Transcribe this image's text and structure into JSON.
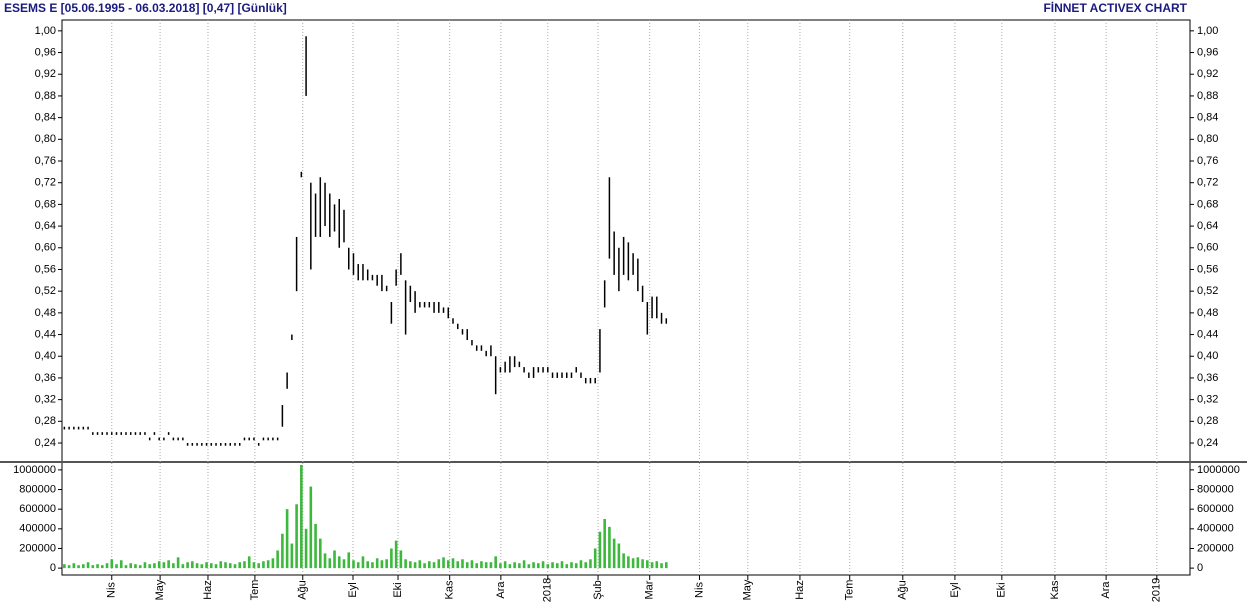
{
  "header": {
    "brand": "FİNNET ACTIVEX CHART"
  },
  "chart_data": [
    {
      "type": "hilo",
      "title": "ESEMS E  [05.06.1995 - 06.03.2018]  [0,47]  [Günlük]",
      "color": "#000000",
      "high": [
        0.27,
        0.27,
        0.27,
        0.27,
        0.27,
        0.27,
        0.26,
        0.26,
        0.26,
        0.26,
        0.26,
        0.26,
        0.26,
        0.26,
        0.26,
        0.26,
        0.26,
        0.26,
        0.25,
        0.26,
        0.25,
        0.25,
        0.26,
        0.25,
        0.25,
        0.25,
        0.24,
        0.24,
        0.24,
        0.24,
        0.24,
        0.24,
        0.24,
        0.24,
        0.24,
        0.24,
        0.24,
        0.24,
        0.25,
        0.25,
        0.25,
        0.24,
        0.25,
        0.25,
        0.25,
        0.25,
        0.31,
        0.37,
        0.44,
        0.62,
        0.74,
        0.99,
        0.72,
        0.7,
        0.73,
        0.72,
        0.7,
        0.68,
        0.69,
        0.67,
        0.6,
        0.59,
        0.57,
        0.57,
        0.56,
        0.55,
        0.55,
        0.55,
        0.53,
        0.5,
        0.56,
        0.59,
        0.54,
        0.53,
        0.52,
        0.5,
        0.5,
        0.5,
        0.5,
        0.5,
        0.49,
        0.49,
        0.47,
        0.46,
        0.45,
        0.45,
        0.43,
        0.42,
        0.42,
        0.41,
        0.42,
        0.4,
        0.38,
        0.39,
        0.4,
        0.4,
        0.39,
        0.38,
        0.37,
        0.38,
        0.38,
        0.38,
        0.38,
        0.37,
        0.37,
        0.37,
        0.37,
        0.37,
        0.38,
        0.37,
        0.36,
        0.36,
        0.36,
        0.45,
        0.54,
        0.73,
        0.63,
        0.6,
        0.62,
        0.61,
        0.59,
        0.58,
        0.53,
        0.5,
        0.51,
        0.51,
        0.48,
        0.47
      ],
      "low": [
        0.265,
        0.265,
        0.265,
        0.265,
        0.265,
        0.265,
        0.255,
        0.255,
        0.255,
        0.255,
        0.255,
        0.255,
        0.255,
        0.255,
        0.255,
        0.255,
        0.255,
        0.255,
        0.245,
        0.255,
        0.245,
        0.245,
        0.255,
        0.245,
        0.245,
        0.245,
        0.235,
        0.235,
        0.235,
        0.235,
        0.235,
        0.235,
        0.235,
        0.235,
        0.235,
        0.235,
        0.235,
        0.235,
        0.245,
        0.245,
        0.245,
        0.235,
        0.245,
        0.245,
        0.245,
        0.245,
        0.27,
        0.34,
        0.43,
        0.52,
        0.73,
        0.88,
        0.56,
        0.62,
        0.62,
        0.64,
        0.62,
        0.63,
        0.6,
        0.61,
        0.56,
        0.55,
        0.54,
        0.54,
        0.54,
        0.54,
        0.53,
        0.52,
        0.52,
        0.46,
        0.53,
        0.55,
        0.44,
        0.5,
        0.48,
        0.49,
        0.49,
        0.49,
        0.48,
        0.48,
        0.48,
        0.47,
        0.46,
        0.45,
        0.44,
        0.43,
        0.42,
        0.41,
        0.41,
        0.4,
        0.4,
        0.33,
        0.37,
        0.37,
        0.37,
        0.38,
        0.38,
        0.37,
        0.36,
        0.36,
        0.37,
        0.37,
        0.37,
        0.36,
        0.36,
        0.36,
        0.36,
        0.36,
        0.37,
        0.36,
        0.35,
        0.35,
        0.35,
        0.37,
        0.49,
        0.58,
        0.55,
        0.52,
        0.55,
        0.54,
        0.55,
        0.52,
        0.5,
        0.44,
        0.47,
        0.47,
        0.46,
        0.46
      ],
      "ylim": [
        0.205,
        1.02
      ],
      "yticks": [
        {
          "value": 0.24,
          "label": "0,24"
        },
        {
          "value": 0.28,
          "label": "0,28"
        },
        {
          "value": 0.32,
          "label": "0,32"
        },
        {
          "value": 0.36,
          "label": "0,36"
        },
        {
          "value": 0.4,
          "label": "0,40"
        },
        {
          "value": 0.44,
          "label": "0,44"
        },
        {
          "value": 0.48,
          "label": "0,48"
        },
        {
          "value": 0.52,
          "label": "0,52"
        },
        {
          "value": 0.56,
          "label": "0,56"
        },
        {
          "value": 0.6,
          "label": "0,60"
        },
        {
          "value": 0.64,
          "label": "0,64"
        },
        {
          "value": 0.68,
          "label": "0,68"
        },
        {
          "value": 0.72,
          "label": "0,72"
        },
        {
          "value": 0.76,
          "label": "0,76"
        },
        {
          "value": 0.8,
          "label": "0,80"
        },
        {
          "value": 0.84,
          "label": "0,84"
        },
        {
          "value": 0.88,
          "label": "0,88"
        },
        {
          "value": 0.92,
          "label": "0,92"
        },
        {
          "value": 0.96,
          "label": "0,96"
        },
        {
          "value": 1.0,
          "label": "1,00"
        }
      ],
      "grid": true
    },
    {
      "type": "bar",
      "color": "#3cb83c",
      "values": [
        40000,
        30000,
        50000,
        30000,
        40000,
        60000,
        30000,
        40000,
        30000,
        50000,
        90000,
        40000,
        80000,
        30000,
        50000,
        40000,
        30000,
        60000,
        40000,
        50000,
        70000,
        60000,
        80000,
        50000,
        110000,
        40000,
        60000,
        70000,
        50000,
        40000,
        60000,
        50000,
        40000,
        70000,
        60000,
        50000,
        40000,
        60000,
        70000,
        120000,
        60000,
        50000,
        70000,
        80000,
        100000,
        180000,
        350000,
        600000,
        250000,
        650000,
        1050000,
        400000,
        830000,
        450000,
        300000,
        150000,
        100000,
        180000,
        120000,
        90000,
        160000,
        80000,
        60000,
        120000,
        70000,
        60000,
        100000,
        80000,
        90000,
        200000,
        280000,
        180000,
        90000,
        70000,
        60000,
        80000,
        50000,
        70000,
        60000,
        90000,
        110000,
        80000,
        100000,
        70000,
        90000,
        60000,
        80000,
        50000,
        70000,
        60000,
        60000,
        120000,
        50000,
        70000,
        40000,
        60000,
        50000,
        80000,
        40000,
        60000,
        50000,
        70000,
        40000,
        60000,
        50000,
        70000,
        40000,
        60000,
        50000,
        80000,
        60000,
        90000,
        200000,
        370000,
        500000,
        420000,
        300000,
        250000,
        150000,
        120000,
        100000,
        110000,
        90000,
        80000,
        60000,
        70000,
        50000,
        60000
      ],
      "ylim": [
        -70000,
        1070000
      ],
      "yticks": [
        0,
        200000,
        400000,
        600000,
        800000,
        1000000
      ],
      "xlim": [
        -0.5,
        237.5
      ],
      "xticks": [
        {
          "value": 10,
          "label": "Nis"
        },
        {
          "value": 20.2,
          "label": "May"
        },
        {
          "value": 30.3,
          "label": "Haz"
        },
        {
          "value": 40.2,
          "label": "Tem"
        },
        {
          "value": 50.3,
          "label": "Ağu"
        },
        {
          "value": 60.9,
          "label": "Eyl"
        },
        {
          "value": 70.4,
          "label": "Eki"
        },
        {
          "value": 81.3,
          "label": "Kas"
        },
        {
          "value": 92.1,
          "label": "Ara"
        },
        {
          "value": 102,
          "label": "2018"
        },
        {
          "value": 112.6,
          "label": "Şub"
        },
        {
          "value": 123.5,
          "label": "Mar"
        },
        {
          "value": 134,
          "label": "Nis"
        },
        {
          "value": 144.2,
          "label": "May"
        },
        {
          "value": 155.2,
          "label": "Haz"
        },
        {
          "value": 165.7,
          "label": "Tem"
        },
        {
          "value": 176.9,
          "label": "Ağu"
        },
        {
          "value": 187.9,
          "label": "Eyl"
        },
        {
          "value": 197.8,
          "label": "Eki"
        },
        {
          "value": 209,
          "label": "Kas"
        },
        {
          "value": 219.8,
          "label": "Ara"
        },
        {
          "value": 230.5,
          "label": "2019"
        }
      ],
      "grid": true
    }
  ]
}
